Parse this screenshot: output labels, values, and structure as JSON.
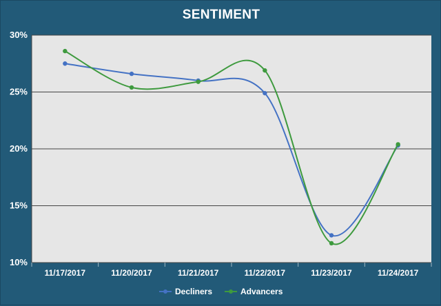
{
  "chart_data": {
    "type": "line",
    "title": "SENTIMENT",
    "categories": [
      "11/17/2017",
      "11/20/2017",
      "11/21/2017",
      "11/22/2017",
      "11/23/2017",
      "11/24/2017"
    ],
    "y_ticks": [
      "30%",
      "25%",
      "20%",
      "15%",
      "10%"
    ],
    "ylim": [
      10,
      30
    ],
    "y_unit": "%",
    "grid": true,
    "smooth": true,
    "legend_position": "bottom",
    "series": [
      {
        "name": "Decliners",
        "color": "#4472c4",
        "values": [
          27.5,
          26.6,
          26.0,
          24.9,
          12.4,
          20.3
        ]
      },
      {
        "name": "Advancers",
        "color": "#3e9a3e",
        "values": [
          28.6,
          25.4,
          25.9,
          26.9,
          11.7,
          20.4
        ]
      }
    ],
    "colors": {
      "background": "#225a78",
      "plot_area": "#e6e6e6",
      "gridline": "#444444",
      "text": "#ffffff"
    }
  }
}
